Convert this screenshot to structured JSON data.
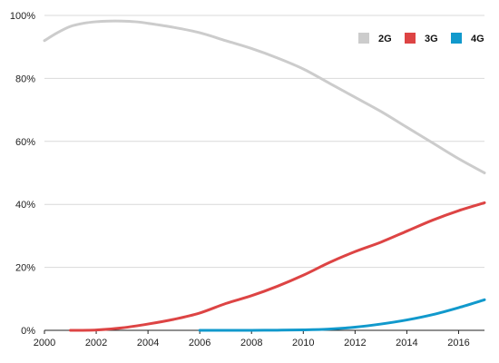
{
  "chart_data": {
    "type": "line",
    "title": "",
    "xlabel": "",
    "ylabel": "",
    "xlim": [
      2000,
      2017
    ],
    "ylim": [
      0,
      100
    ],
    "grid": true,
    "legend_position": "top-right",
    "x_ticks": [
      2000,
      2002,
      2004,
      2006,
      2008,
      2010,
      2012,
      2014,
      2016
    ],
    "y_ticks": [
      0,
      20,
      40,
      60,
      80,
      100
    ],
    "x_tick_labels": [
      "2000",
      "2002",
      "2004",
      "2006",
      "2008",
      "2010",
      "2012",
      "2014",
      "2016"
    ],
    "y_tick_labels": [
      "0%",
      "20%",
      "40%",
      "60%",
      "80%",
      "100%"
    ],
    "series": [
      {
        "name": "2G",
        "color": "#cccccc",
        "x": [
          2000,
          2000.5,
          2001,
          2001.5,
          2002,
          2002.5,
          2003,
          2003.5,
          2004,
          2005,
          2006,
          2007,
          2008,
          2009,
          2010,
          2011,
          2012,
          2013,
          2014,
          2015,
          2016,
          2017
        ],
        "values": [
          92,
          94.5,
          96.5,
          97.5,
          98,
          98.2,
          98.2,
          98,
          97.5,
          96.2,
          94.5,
          92,
          89.5,
          86.5,
          83,
          78.5,
          74,
          69.5,
          64.5,
          59.5,
          54.5,
          50
        ]
      },
      {
        "name": "3G",
        "color": "#dd4444",
        "x": [
          2001,
          2002,
          2003,
          2004,
          2005,
          2006,
          2007,
          2008,
          2009,
          2010,
          2011,
          2012,
          2013,
          2014,
          2015,
          2016,
          2017
        ],
        "values": [
          0,
          0.1,
          0.8,
          2,
          3.5,
          5.5,
          8.5,
          11,
          14,
          17.5,
          21.5,
          25,
          28,
          31.5,
          35,
          38,
          40.5
        ]
      },
      {
        "name": "4G",
        "color": "#1199cc",
        "x": [
          2006,
          2007,
          2008,
          2009,
          2010,
          2011,
          2012,
          2013,
          2014,
          2015,
          2016,
          2017
        ],
        "values": [
          0,
          0,
          0,
          0.05,
          0.15,
          0.4,
          1.0,
          2.0,
          3.3,
          5.0,
          7.2,
          9.7
        ]
      }
    ]
  }
}
